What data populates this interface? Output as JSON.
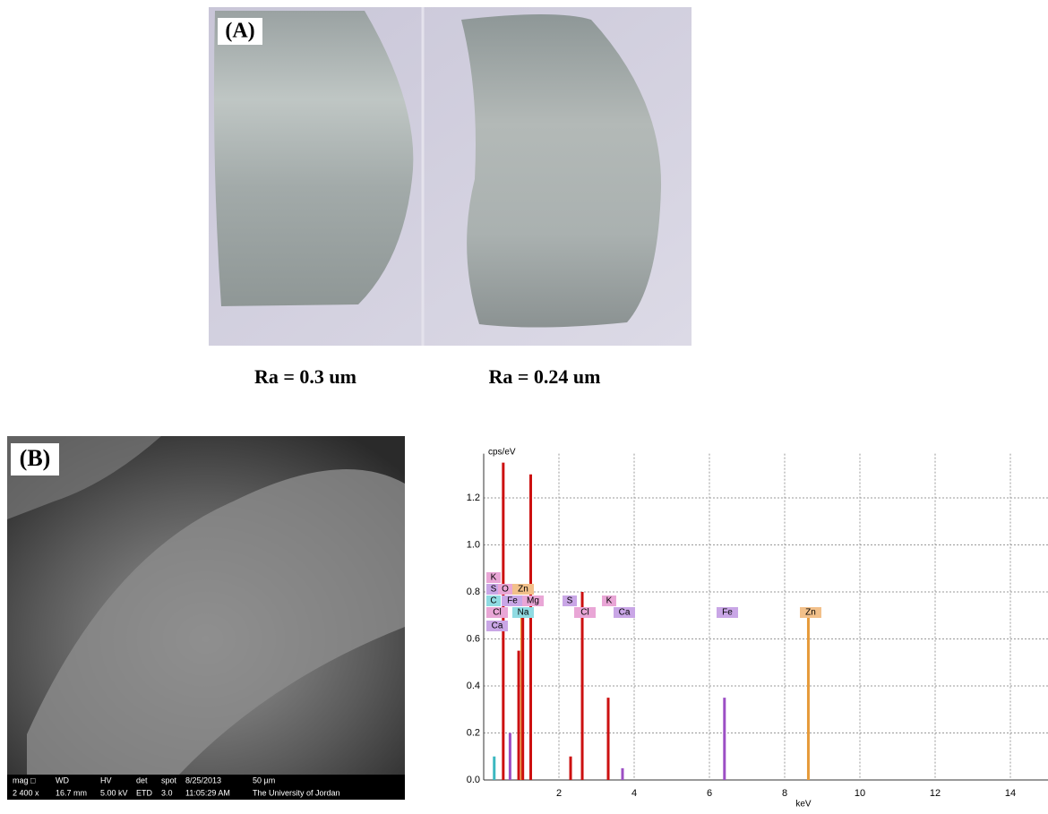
{
  "panel_a": {
    "label": "(A)",
    "captions": [
      "Ra = 0.3 um",
      "Ra = 0.24 um"
    ]
  },
  "panel_b": {
    "label": "(B)",
    "sem_info": {
      "headers": [
        "mag □",
        "WD",
        "HV",
        "det",
        "spot",
        "8/25/2013",
        "50 µm"
      ],
      "values": [
        "2 400 x",
        "16.7 mm",
        "5.00 kV",
        "ETD",
        "3.0",
        "11:05:29 AM",
        "The University of Jordan"
      ]
    }
  },
  "chart_data": {
    "type": "spectrum",
    "ylabel": "cps/eV",
    "xlabel": "keV",
    "xlim": [
      0,
      15
    ],
    "ylim": [
      0,
      1.35
    ],
    "xticks": [
      2,
      4,
      6,
      8,
      10,
      12,
      14
    ],
    "yticks": [
      {
        "value": 0,
        "label": "0.0"
      },
      0.2,
      0.4,
      0.6,
      0.8,
      {
        "value": 1,
        "label": "1.0"
      },
      1.2
    ],
    "x": [
      0.28,
      0.52,
      0.7,
      0.93,
      1.01,
      1.04,
      1.25,
      2.31,
      2.62,
      3.31,
      3.69,
      6.4,
      8.63
    ],
    "values": [
      0.1,
      1.35,
      0.2,
      0.55,
      0.7,
      0.7,
      1.3,
      0.1,
      0.8,
      0.35,
      0.05,
      0.35,
      0.7
    ],
    "colors": [
      "#3bb8c0",
      "#cc1010",
      "#9c4fc4",
      "#cc1010",
      "#e69a3a",
      "#cc1010",
      "#cc1010",
      "#cc1010",
      "#cc1010",
      "#cc1010",
      "#9c4fc4",
      "#9c4fc4",
      "#e69a3a"
    ],
    "element_labels": [
      "K",
      "S",
      "O",
      "Zn",
      "C",
      "Fe",
      "Mg",
      "Cl",
      "Na",
      "Ca",
      "S",
      "Cl",
      "K",
      "Ca",
      "Fe",
      "Zn"
    ],
    "grid": true
  }
}
